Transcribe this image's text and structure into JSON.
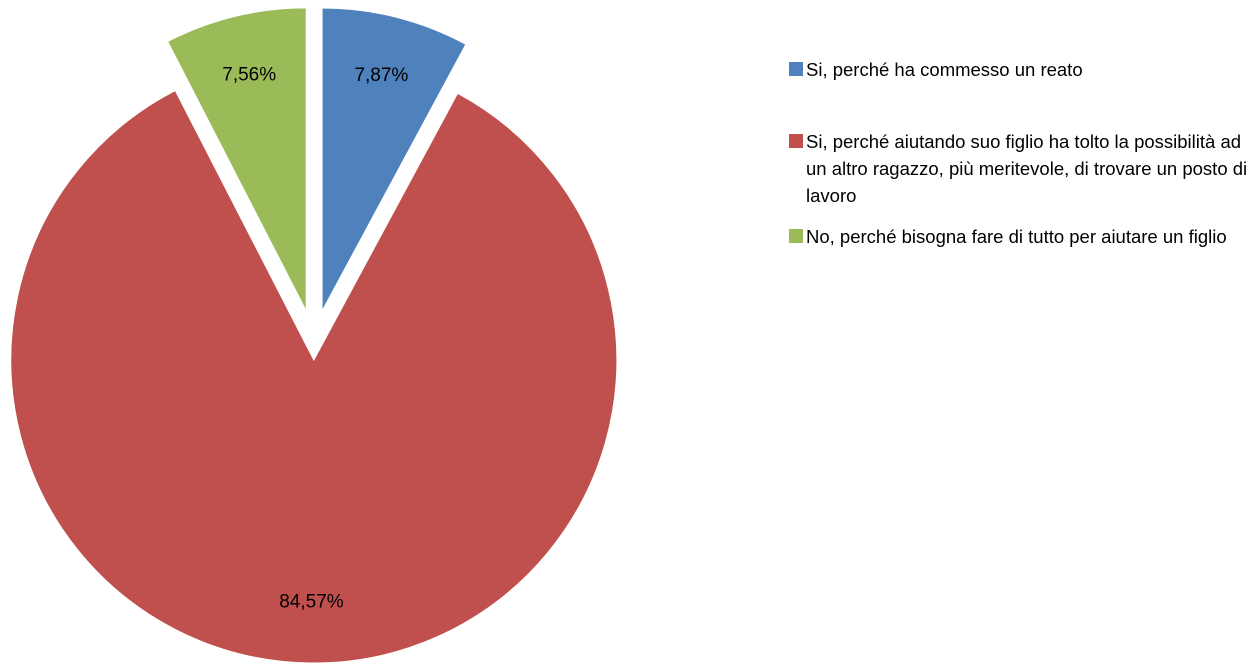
{
  "chart_data": {
    "type": "pie",
    "categories": [
      "Si, perché ha commesso un reato",
      "Si, perché aiutando suo figlio ha tolto la possibilità ad un altro ragazzo, più meritevole, di trovare un posto di lavoro",
      "No, perché bisogna fare di tutto per aiutare un figlio"
    ],
    "values": [
      7.87,
      84.57,
      7.56
    ],
    "value_labels": [
      "7,87%",
      "84,57%",
      "7,56%"
    ],
    "colors": [
      "#4f81bd",
      "#c0504d",
      "#9bbb59"
    ],
    "legend": "right"
  }
}
